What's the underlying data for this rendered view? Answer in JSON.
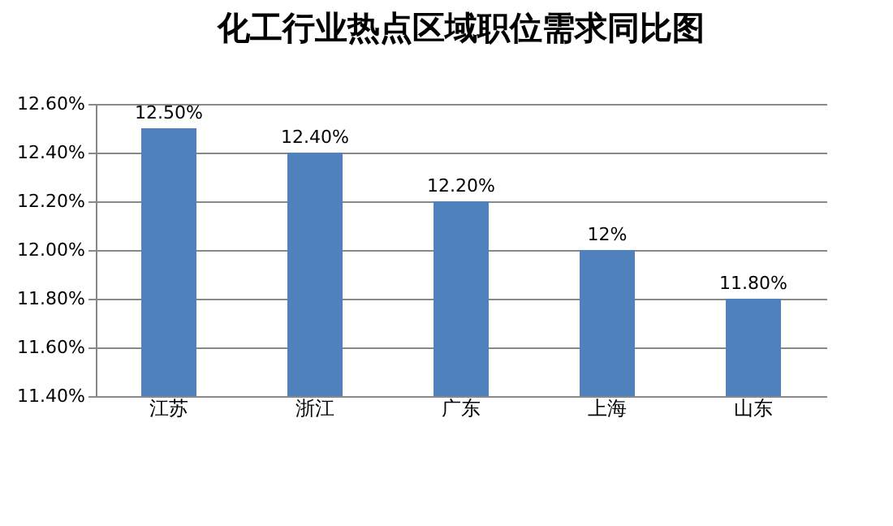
{
  "chart_data": {
    "type": "bar",
    "title": "化工行业热点区域职位需求同比图",
    "categories": [
      "江苏",
      "浙江",
      "广东",
      "上海",
      "山东"
    ],
    "values": [
      12.5,
      12.4,
      12.2,
      12,
      11.8
    ],
    "value_labels": [
      "12.50%",
      "12.40%",
      "12.20%",
      "12%",
      "11.80%"
    ],
    "color": "#4f81bd",
    "ylim": [
      11.4,
      12.6
    ],
    "yticks": [
      {
        "value": 11.4,
        "label": "11.40%"
      },
      {
        "value": 11.6,
        "label": "11.60%"
      },
      {
        "value": 11.8,
        "label": "11.80%"
      },
      {
        "value": 12.0,
        "label": "12.00%"
      },
      {
        "value": 12.2,
        "label": "12.20%"
      },
      {
        "value": 12.4,
        "label": "12.40%"
      },
      {
        "value": 12.6,
        "label": "12.60%"
      }
    ],
    "grid": "y"
  }
}
